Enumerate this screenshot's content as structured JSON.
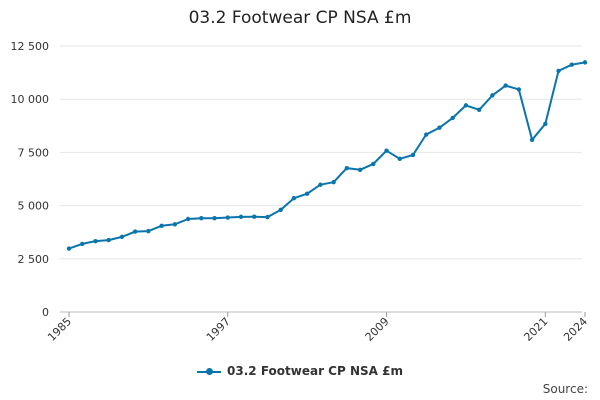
{
  "chart_data": {
    "type": "line",
    "title": "03.2 Footwear CP NSA £m",
    "xlabel": "",
    "ylabel": "",
    "ylim": [
      0,
      12500
    ],
    "yticks": [
      0,
      2500,
      5000,
      7500,
      10000,
      12500
    ],
    "ytick_labels": [
      "0",
      "2 500",
      "5 000",
      "7 500",
      "10 000",
      "12 500"
    ],
    "xlim": [
      1985,
      2024
    ],
    "xticks": [
      1985,
      1997,
      2009,
      2021,
      2024
    ],
    "xtick_labels": [
      "1985",
      "1997",
      "2009",
      "2021",
      "2024"
    ],
    "grid": true,
    "legend_position": "bottom",
    "series": [
      {
        "name": "03.2 Footwear CP NSA £m",
        "color": "#0a75ad",
        "x": [
          1985,
          1986,
          1987,
          1988,
          1989,
          1990,
          1991,
          1992,
          1993,
          1994,
          1995,
          1996,
          1997,
          1998,
          1999,
          2000,
          2001,
          2002,
          2003,
          2004,
          2005,
          2006,
          2007,
          2008,
          2009,
          2010,
          2011,
          2012,
          2013,
          2014,
          2015,
          2016,
          2017,
          2018,
          2019,
          2020,
          2021,
          2022,
          2023,
          2024
        ],
        "values": [
          2980,
          3200,
          3330,
          3380,
          3530,
          3780,
          3800,
          4050,
          4120,
          4370,
          4410,
          4410,
          4440,
          4470,
          4480,
          4460,
          4800,
          5350,
          5560,
          5980,
          6100,
          6760,
          6680,
          6960,
          7580,
          7200,
          7380,
          8340,
          8660,
          9120,
          9710,
          9500,
          10180,
          10640,
          10460,
          8090,
          8840,
          11330,
          11620,
          11730
        ]
      }
    ]
  },
  "legend": {
    "label": "03.2 Footwear CP NSA £m"
  },
  "source": {
    "label": "Source:"
  }
}
